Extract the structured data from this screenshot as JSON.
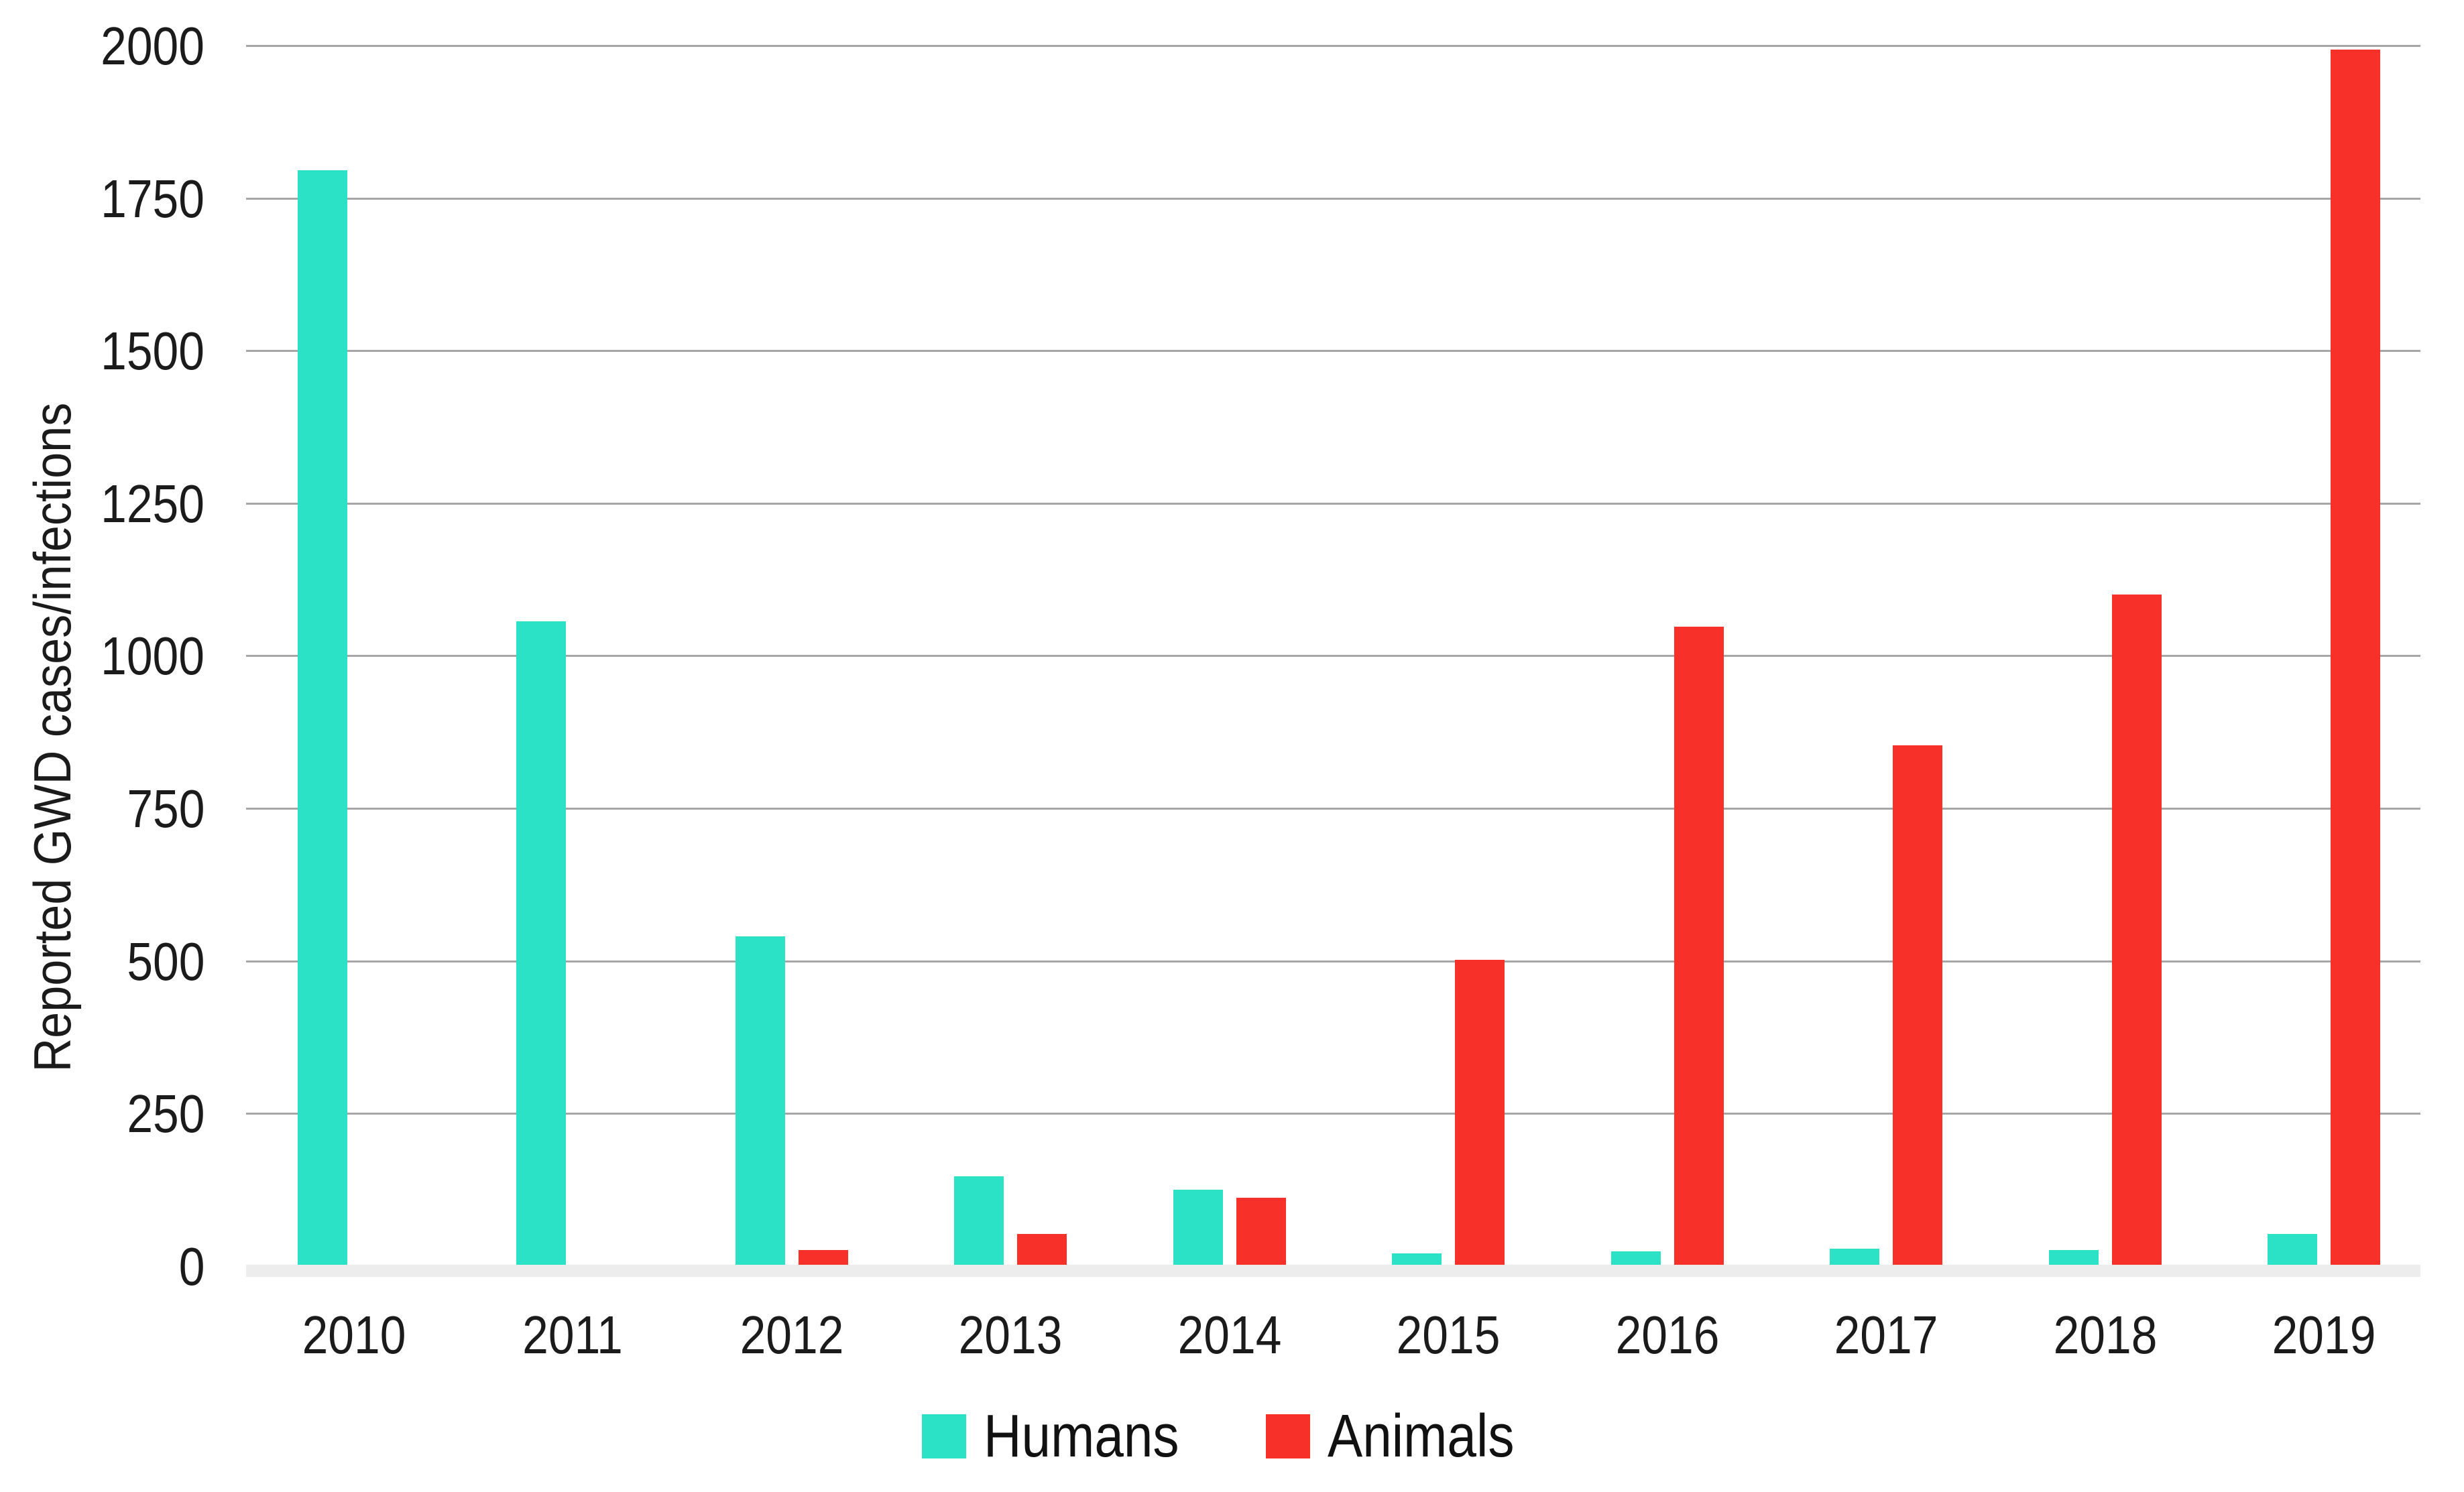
{
  "chart_data": {
    "type": "bar",
    "title": "",
    "xlabel": "",
    "ylabel": "Reported GWD cases/infections",
    "categories": [
      "2010",
      "2011",
      "2012",
      "2013",
      "2014",
      "2015",
      "2016",
      "2017",
      "2018",
      "2019"
    ],
    "series": [
      {
        "name": "Humans",
        "color": "#2be2c7",
        "values": [
          1797,
          1058,
          542,
          148,
          126,
          22,
          25,
          30,
          28,
          54
        ]
      },
      {
        "name": "Animals",
        "color": "#f8302a",
        "values": [
          0,
          0,
          27,
          54,
          113,
          503,
          1049,
          855,
          1102,
          1994
        ]
      }
    ],
    "ylim": [
      0,
      2000
    ],
    "yticks": [
      0,
      250,
      500,
      750,
      1000,
      1250,
      1500,
      1750,
      2000
    ],
    "grid": true,
    "gridline_color": "#a6a6a6",
    "baseline_color": "#ededed",
    "legend_position": "bottom",
    "legend": [
      "Humans",
      "Animals"
    ]
  }
}
